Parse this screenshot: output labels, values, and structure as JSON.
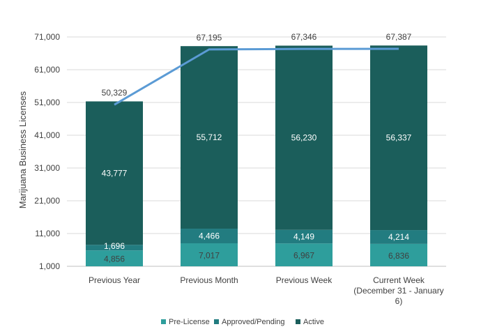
{
  "chart_data": {
    "type": "bar",
    "stacked": true,
    "ylabel": "Marijuana Business Licenses",
    "yticks": [
      1000,
      11000,
      21000,
      31000,
      41000,
      51000,
      61000,
      71000
    ],
    "ytick_labels": [
      "1,000",
      "11,000",
      "21,000",
      "31,000",
      "41,000",
      "51,000",
      "61,000",
      "71,000"
    ],
    "ylim": [
      1000,
      71000
    ],
    "categories": [
      [
        "Previous Year"
      ],
      [
        "Previous Month"
      ],
      [
        "Previous Week"
      ],
      [
        "Current Week",
        "(December 31 - January",
        "6)"
      ]
    ],
    "series": [
      {
        "name": "Pre-License",
        "color": "#2e9e9c",
        "values": [
          4856,
          7017,
          6967,
          6836
        ],
        "labels": [
          "4,856",
          "7,017",
          "6,967",
          "6,836"
        ],
        "label_style": "dark"
      },
      {
        "name": "Approved/Pending",
        "color": "#227c80",
        "values": [
          1696,
          4466,
          4149,
          4214
        ],
        "labels": [
          "1,696",
          "4,466",
          "4,149",
          "4,214"
        ],
        "label_style": "light"
      },
      {
        "name": "Active",
        "color": "#1b5e5b",
        "values": [
          43777,
          55712,
          56230,
          56337
        ],
        "labels": [
          "43,777",
          "55,712",
          "56,230",
          "56,337"
        ],
        "label_style": "light"
      }
    ],
    "totals": {
      "name": "Total",
      "color": "#5b9bd5",
      "values": [
        50329,
        67195,
        67346,
        67387
      ],
      "labels": [
        "50,329",
        "67,195",
        "67,346",
        "67,387"
      ]
    },
    "legend_position": "bottom",
    "grid": true
  }
}
